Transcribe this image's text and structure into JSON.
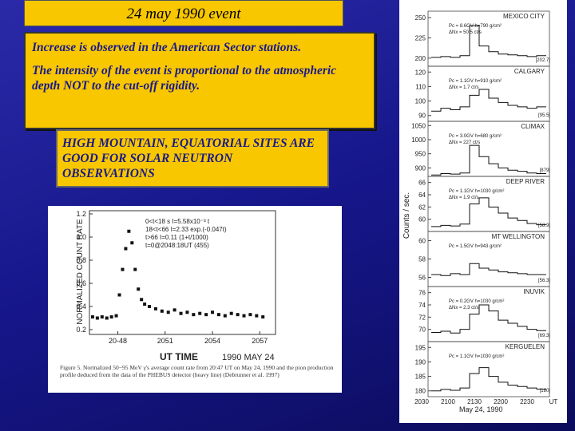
{
  "title": "24 may 1990 event",
  "box1": [
    "Increase is observed in the American Sector stations.",
    "The intensity of the event is proportional to the atmospheric depth NOT to the cut-off rigidity."
  ],
  "box2": "HIGH MOUNTAIN, EQUATORIAL SITES ARE GOOD FOR SOLAR NEUTRON OBSERVATIONS",
  "figure_left": {
    "y_label": "NORMALIZED COUNT RATE",
    "x_label": "UT TIME",
    "date": "1990 MAY 24",
    "ylim": [
      0.2,
      1.2
    ],
    "yticks": [
      0.2,
      0.4,
      0.6,
      0.8,
      {
        "value": 1.0,
        "label": "1.0"
      },
      1.2
    ],
    "xlim": [
      2046.2,
      2058
    ],
    "xticks": [
      {
        "value": 2048,
        "label": "20-48"
      },
      2051,
      2054,
      2057
    ],
    "notes": [
      "0<t<18 s     I=5.58x10⁻³ t",
      "18<t<66      I=2.33 exp.(-0.047t)",
      "t>66          I=0.11 (1+t/1000)",
      "t=0@2048:18UT (455)"
    ],
    "x": [
      2046.4,
      2046.7,
      2047.0,
      2047.3,
      2047.6,
      2047.9,
      2048.1,
      2048.3,
      2048.5,
      2048.7,
      2048.9,
      2049.1,
      2049.3,
      2049.5,
      2049.7,
      2050.0,
      2050.4,
      2050.8,
      2051.2,
      2051.6,
      2052.0,
      2052.4,
      2052.8,
      2053.2,
      2053.6,
      2054.0,
      2054.4,
      2054.8,
      2055.2,
      2055.6,
      2056.0,
      2056.4,
      2056.8,
      2057.2
    ],
    "values": [
      0.31,
      0.3,
      0.31,
      0.3,
      0.31,
      0.32,
      0.5,
      0.72,
      0.9,
      1.05,
      0.95,
      0.72,
      0.55,
      0.46,
      0.42,
      0.4,
      0.38,
      0.36,
      0.35,
      0.37,
      0.34,
      0.35,
      0.33,
      0.34,
      0.33,
      0.35,
      0.33,
      0.32,
      0.34,
      0.33,
      0.32,
      0.33,
      0.32,
      0.31
    ],
    "caption": "Figure 5. Normalized 50−95 MeV γ's average count rate from 20:47 UT on May 24, 1990 and the pion production profile deduced from the data of the PHEBUS detector (heavy line) (Debrunner et al. 1997)"
  },
  "figure_right": {
    "y_label": "Counts / sec.",
    "x_label": "May 24, 1990",
    "xticks": [
      "2030",
      "2100",
      "2130",
      "2200",
      "2230",
      "UT"
    ],
    "panels": [
      {
        "station": "MEXICO CITY",
        "info": [
          "Pc = 8.6GV  h=790 g/cm²",
          "ΔNx = 50.5 ct/s"
        ],
        "base": "[202.7]",
        "ylim": [
          190,
          258
        ],
        "yticks": [
          200,
          225,
          250
        ],
        "values": [
          201,
          202,
          201,
          203,
          240,
          215,
          208,
          205,
          204,
          203,
          202,
          203
        ]
      },
      {
        "station": "CALGARY",
        "info": [
          "Pc = 1.1GV  h=910 g/cm²",
          "ΔNx = 1.7 ct/s"
        ],
        "base": "[95.5]",
        "ylim": [
          86,
          124
        ],
        "yticks": [
          90,
          100,
          110,
          120
        ],
        "values": [
          93,
          95,
          94,
          96,
          104,
          108,
          102,
          99,
          97,
          96,
          95,
          96
        ]
      },
      {
        "station": "CLIMAX",
        "info": [
          "Pc = 3.0GV  h=680 g/cm²",
          "ΔNx = 227 ct/s"
        ],
        "base": "[879]",
        "ylim": [
          870,
          1065
        ],
        "yticks": [
          900,
          950,
          1000,
          1050
        ],
        "values": [
          875,
          880,
          878,
          882,
          980,
          940,
          915,
          900,
          892,
          888,
          882,
          880
        ]
      },
      {
        "station": "DEEP RIVER",
        "info": [
          "Pc = 1.1GV  h=1030 g/cm²",
          "ΔNx = 1.9 ct/s"
        ],
        "base": "[58.9]",
        "ylim": [
          58,
          67
        ],
        "yticks": [
          60,
          62,
          64,
          66
        ],
        "values": [
          58.8,
          59,
          58.9,
          59.2,
          62.5,
          63.5,
          62,
          61,
          60.2,
          59.8,
          59.3,
          59.1
        ]
      },
      {
        "station": "MT WELLINGTON",
        "info": [
          "Pc = 1.5GV  h=943 g/cm²"
        ],
        "base": "[56.3]",
        "ylim": [
          55,
          61
        ],
        "yticks": [
          56,
          58,
          60
        ],
        "values": [
          56.3,
          56.2,
          56.4,
          56.3,
          57.5,
          57,
          56.8,
          56.6,
          56.5,
          56.4,
          56.3,
          56.3
        ]
      },
      {
        "station": "INUVIK",
        "info": [
          "Pc = 0.2GV  h=1030 g/cm²",
          "ΔNx = 2.3 ct/s"
        ],
        "base": "[69.3]",
        "ylim": [
          68,
          77
        ],
        "yticks": [
          70,
          72,
          74,
          76
        ],
        "values": [
          69.5,
          69.7,
          69.4,
          70,
          72.5,
          74,
          73,
          71.5,
          71,
          70.5,
          70,
          69.8
        ]
      },
      {
        "station": "KERGUELEN",
        "info": [
          "Pc = 1.1GV  h=1030 g/cm²"
        ],
        "base": "[180]",
        "ylim": [
          178,
          197
        ],
        "yticks": [
          180,
          185,
          190,
          195
        ],
        "values": [
          180,
          180.5,
          180.2,
          181,
          186,
          188,
          185,
          183,
          182,
          181.5,
          181,
          180.6
        ]
      }
    ]
  }
}
